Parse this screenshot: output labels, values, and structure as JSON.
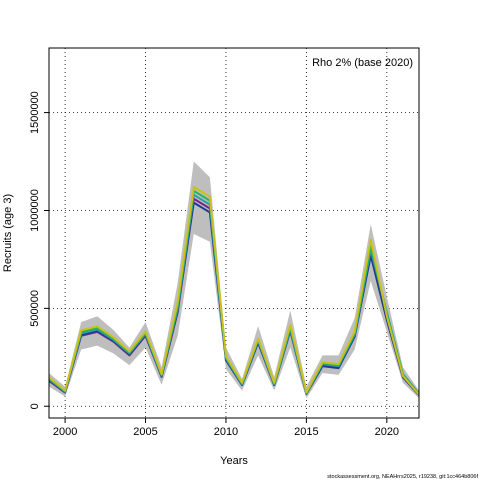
{
  "chart_data": {
    "type": "line",
    "title": "",
    "annotation": "Rho 2% (base 2020)",
    "xlabel": "Years",
    "ylabel": "Recruits (age 3)",
    "credit": "stockassessment.org, NEAHrrs2025, r19238, git:1cc464b806f",
    "xlim": [
      1999,
      2022
    ],
    "ylim": [
      -60000,
      1830000
    ],
    "xticks": [
      2000,
      2005,
      2010,
      2015,
      2020
    ],
    "yticks": [
      0,
      500000,
      1000000,
      1500000
    ],
    "grid": true,
    "band": {
      "name": "confidence interval",
      "color": "#bebebe",
      "x": [
        1999,
        2000,
        2001,
        2002,
        2003,
        2004,
        2005,
        2006,
        2007,
        2008,
        2009,
        2010,
        2011,
        2012,
        2013,
        2014,
        2015,
        2016,
        2017,
        2018,
        2019,
        2020,
        2021,
        2022
      ],
      "lower": [
        100000,
        50000,
        290000,
        310000,
        270000,
        210000,
        300000,
        110000,
        360000,
        880000,
        840000,
        190000,
        80000,
        260000,
        80000,
        300000,
        40000,
        170000,
        160000,
        290000,
        640000,
        380000,
        120000,
        40000
      ],
      "upper": [
        170000,
        100000,
        430000,
        460000,
        390000,
        300000,
        430000,
        200000,
        630000,
        1250000,
        1170000,
        300000,
        140000,
        410000,
        150000,
        490000,
        100000,
        260000,
        260000,
        450000,
        930000,
        560000,
        200000,
        80000
      ]
    },
    "series": [
      {
        "color": "#6e2b8b",
        "x": [
          1999,
          2000,
          2001,
          2002,
          2003,
          2004,
          2005,
          2006,
          2007,
          2008,
          2009,
          2010,
          2011,
          2012,
          2013,
          2014,
          2015,
          2016,
          2017,
          2018,
          2019,
          2020,
          2021,
          2022
        ],
        "values": [
          130000,
          70000,
          360000,
          380000,
          330000,
          260000,
          360000,
          150000,
          480000,
          1060000,
          1010000,
          240000,
          110000,
          330000,
          110000,
          390000,
          65000,
          210000,
          200000,
          360000,
          780000,
          450000,
          150000,
          60000
        ]
      },
      {
        "color": "#1f3a93",
        "x": [
          1999,
          2000,
          2001,
          2002,
          2003,
          2004,
          2005,
          2006,
          2007,
          2008,
          2009,
          2010,
          2011,
          2012,
          2013,
          2014,
          2015,
          2016,
          2017,
          2018,
          2019,
          2020,
          2021,
          2022
        ],
        "values": [
          133000,
          72000,
          365000,
          385000,
          335000,
          265000,
          365000,
          152000,
          490000,
          1040000,
          990000,
          235000,
          108000,
          325000,
          108000,
          385000,
          63000,
          205000,
          195000,
          355000,
          770000,
          440000,
          148000,
          58000
        ]
      },
      {
        "color": "#2aa1a3",
        "x": [
          1999,
          2000,
          2001,
          2002,
          2003,
          2004,
          2005,
          2006,
          2007,
          2008,
          2009,
          2010,
          2011,
          2012,
          2013,
          2014,
          2015,
          2016,
          2017,
          2018,
          2019,
          2020,
          2021,
          2022
        ],
        "values": [
          138000,
          74000,
          372000,
          392000,
          340000,
          270000,
          370000,
          156000,
          500000,
          1080000,
          1030000,
          245000,
          112000,
          335000,
          112000,
          395000,
          66000,
          215000,
          205000,
          365000,
          800000,
          480000,
          165000,
          65000
        ]
      },
      {
        "color": "#29b35a",
        "x": [
          1999,
          2000,
          2001,
          2002,
          2003,
          2004,
          2005,
          2006,
          2007,
          2008,
          2009,
          2010,
          2011,
          2012,
          2013,
          2014,
          2015,
          2016,
          2017,
          2018,
          2019,
          2020,
          2021,
          2022
        ],
        "values": [
          143000,
          77000,
          380000,
          400000,
          346000,
          275000,
          376000,
          160000,
          515000,
          1100000,
          1050000,
          250000,
          116000,
          340000,
          116000,
          405000,
          68000,
          220000,
          210000,
          372000,
          820000,
          470000,
          160000,
          62000
        ]
      },
      {
        "color": "#c9c21a",
        "x": [
          1999,
          2000,
          2001,
          2002,
          2003,
          2004,
          2005,
          2006,
          2007,
          2008,
          2009,
          2010,
          2011,
          2012,
          2013,
          2014,
          2015,
          2016,
          2017,
          2018,
          2019,
          2020,
          2021,
          2022
        ],
        "values": [
          148000,
          80000,
          388000,
          408000,
          352000,
          280000,
          382000,
          164000,
          530000,
          1120000,
          1070000,
          255000,
          120000,
          345000,
          120000,
          415000,
          70000,
          225000,
          215000,
          380000,
          850000,
          460000,
          155000,
          60000
        ]
      }
    ]
  }
}
